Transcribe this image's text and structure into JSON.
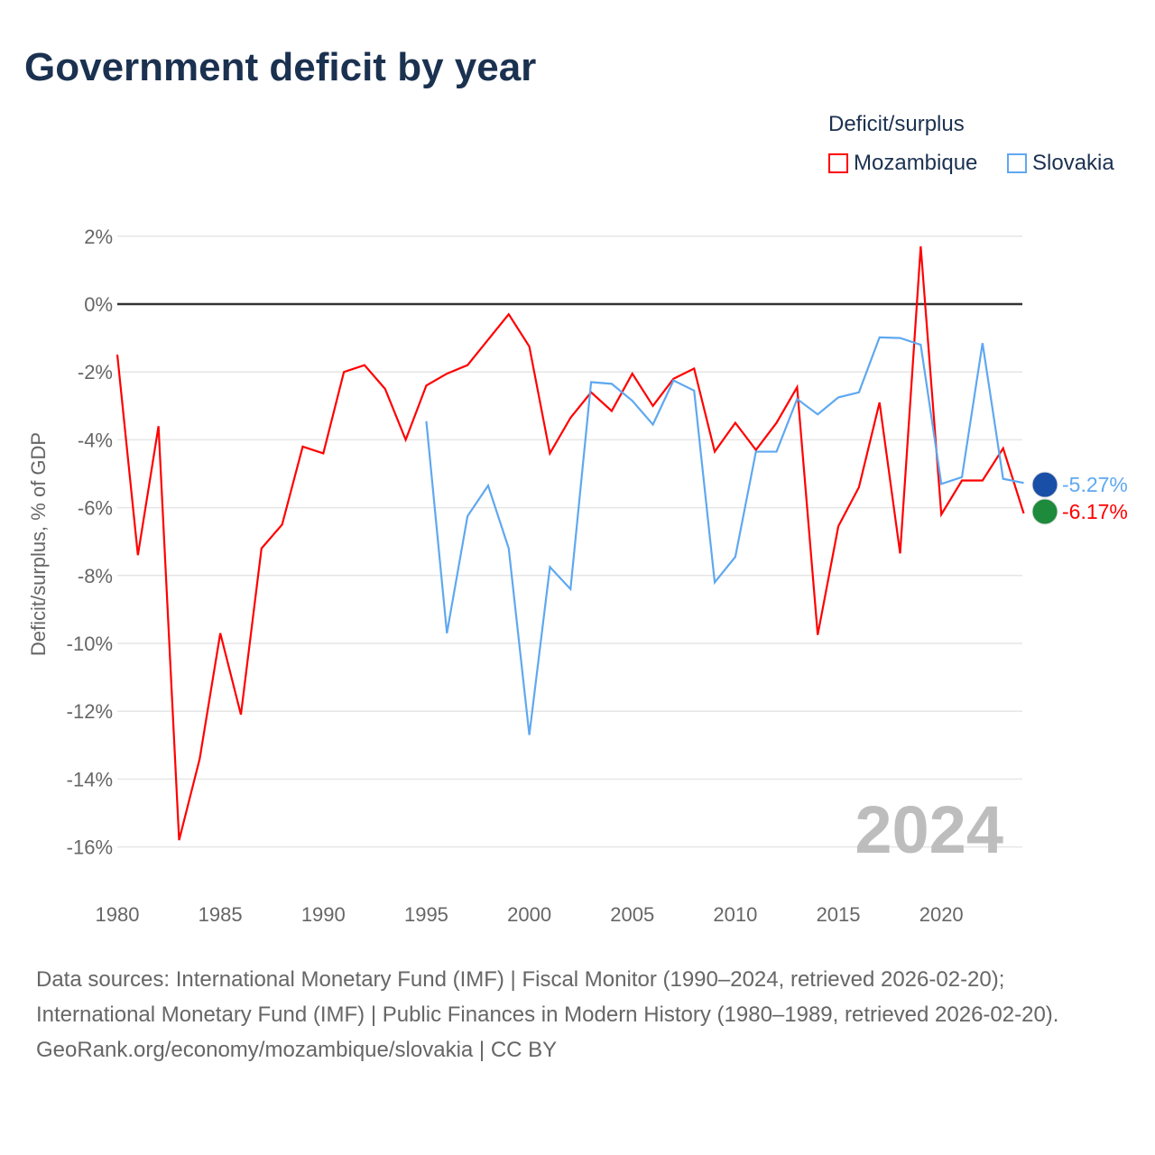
{
  "title": "Government deficit by year",
  "legend": {
    "title": "Deficit/surplus"
  },
  "year_label": "2024",
  "sources": {
    "line1": "Data sources: International Monetary Fund (IMF) | Fiscal Monitor (1990–2024, retrieved 2026-02-20); International Monetary Fund (IMF) | Public Finances in Modern History (1980–1989, retrieved 2026-02-20).",
    "line2": "GeoRank.org/economy/mozambique/slovakia | CC BY"
  },
  "chart_data": {
    "type": "line",
    "title": "Government deficit by year",
    "xlabel": "",
    "ylabel": "Deficit/surplus, % of GDP",
    "xlim": [
      1980,
      2024
    ],
    "ylim": [
      -17,
      2.5
    ],
    "xticks": [
      1980,
      1985,
      1990,
      1995,
      2000,
      2005,
      2010,
      2015,
      2020
    ],
    "yticks": [
      2,
      0,
      -2,
      -4,
      -6,
      -8,
      -10,
      -12,
      -14,
      -16
    ],
    "grid": true,
    "legend_position": "top-right",
    "series": [
      {
        "name": "Mozambique",
        "color": "#ff0000",
        "end_label": "-6.17%",
        "start_year": 1980,
        "values": [
          -1.49,
          -7.4,
          -3.6,
          -15.8,
          -13.4,
          -9.7,
          -12.1,
          -7.2,
          -6.5,
          -4.2,
          -4.4,
          -2.0,
          -1.8,
          -2.5,
          -4.0,
          -2.4,
          -2.05,
          -1.8,
          -1.05,
          -0.3,
          -1.25,
          -4.4,
          -3.35,
          -2.6,
          -3.15,
          -2.05,
          -3.0,
          -2.2,
          -1.9,
          -4.35,
          -3.5,
          -4.3,
          -3.5,
          -2.45,
          -9.75,
          -6.55,
          -5.4,
          -2.9,
          -7.35,
          1.7,
          -6.2,
          -5.2,
          -5.2,
          -4.25,
          -6.17
        ]
      },
      {
        "name": "Slovakia",
        "color": "#5fa8f0",
        "end_label": "-5.27%",
        "start_year": 1995,
        "values": [
          -3.45,
          -9.7,
          -6.25,
          -5.35,
          -7.2,
          -12.7,
          -7.75,
          -8.4,
          -2.3,
          -2.35,
          -2.85,
          -3.55,
          -2.25,
          -2.55,
          -8.2,
          -7.45,
          -4.35,
          -4.35,
          -2.8,
          -3.25,
          -2.75,
          -2.6,
          -0.98,
          -1.0,
          -1.2,
          -5.3,
          -5.1,
          -1.15,
          -5.15,
          -5.27
        ]
      }
    ]
  }
}
